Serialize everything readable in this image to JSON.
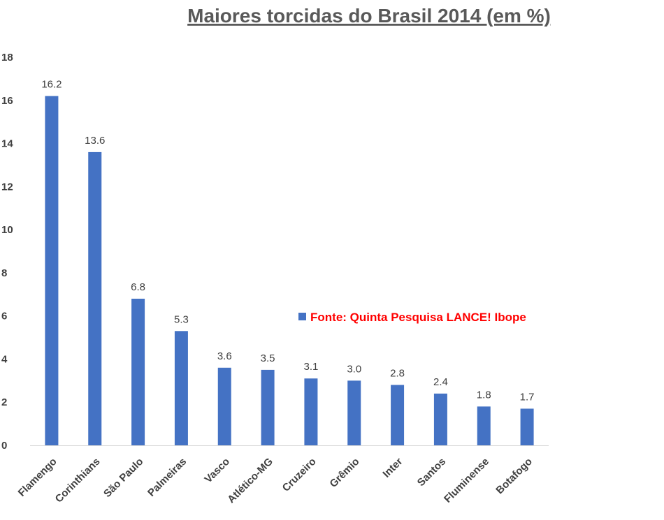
{
  "chart_data": {
    "type": "bar",
    "title": "Maiores torcidas do Brasil 2014 (em %)",
    "categories": [
      "Flamengo",
      "Corinthians",
      "São Paulo",
      "Palmeiras",
      "Vasco",
      "Atlético-MG",
      "Cruzeiro",
      "Grêmio",
      "Inter",
      "Santos",
      "Fluminense",
      "Botafogo"
    ],
    "series": [
      {
        "name": "Fonte: Quinta Pesquisa LANCE! Ibope",
        "values": [
          16.2,
          13.6,
          6.8,
          5.3,
          3.6,
          3.5,
          3.1,
          3.0,
          2.8,
          2.4,
          1.8,
          1.7
        ],
        "labels": [
          "16.2",
          "13.6",
          "6.8",
          "5.3",
          "3.6",
          "3.5",
          "3.1",
          "3.0",
          "2.8",
          "2.4",
          "1.8",
          "1.7"
        ],
        "color": "#4472c4"
      }
    ],
    "ylim": [
      0,
      18
    ],
    "yticks": [
      0,
      2,
      4,
      6,
      8,
      10,
      12,
      14,
      16,
      18
    ],
    "grid": false,
    "legend_position": "right",
    "legend_color": "#ff0000",
    "axis_color": "#d9d9d9"
  }
}
